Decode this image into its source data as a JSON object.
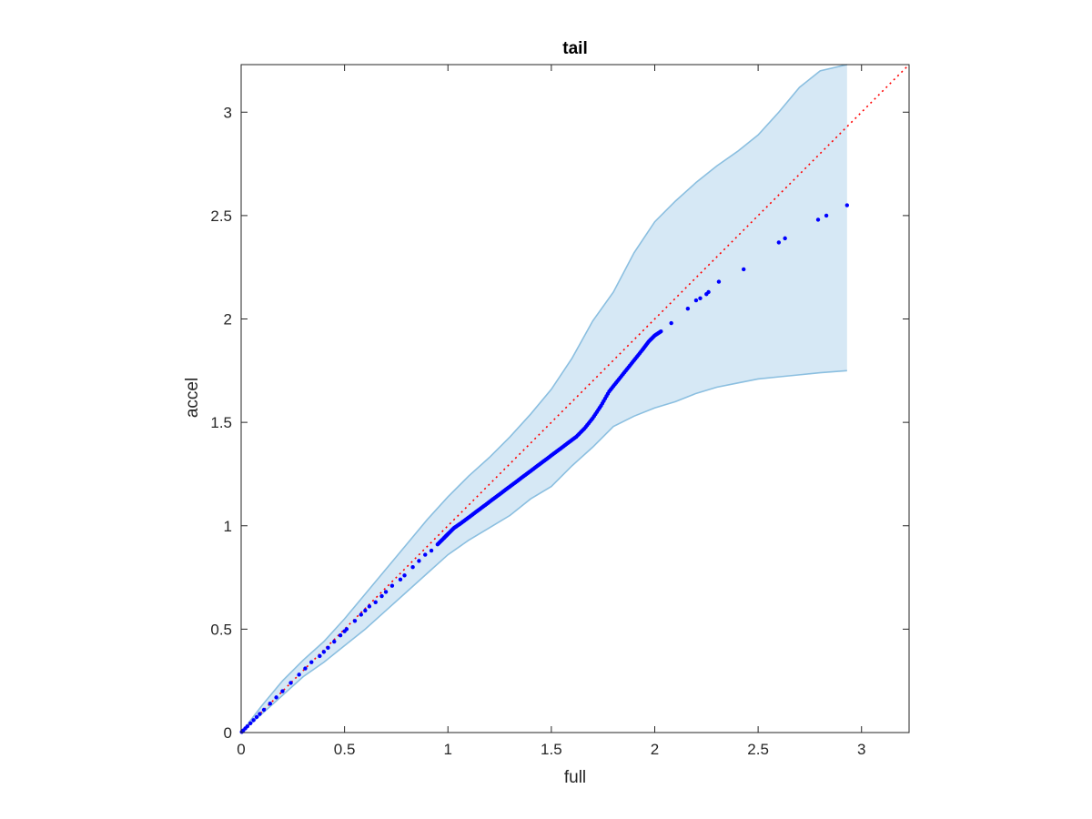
{
  "chart_data": {
    "type": "scatter",
    "title": "tail",
    "xlabel": "full",
    "ylabel": "accel",
    "xlim": [
      0,
      3.23
    ],
    "ylim": [
      0,
      3.23
    ],
    "xticks": [
      0,
      0.5,
      1,
      1.5,
      2,
      2.5,
      3
    ],
    "yticks": [
      0,
      0.5,
      1,
      1.5,
      2,
      2.5,
      3
    ],
    "xtick_labels": [
      "0",
      "0.5",
      "1",
      "1.5",
      "2",
      "2.5",
      "3"
    ],
    "ytick_labels": [
      "0",
      "0.5",
      "1",
      "1.5",
      "2",
      "2.5",
      "3"
    ],
    "grid": false,
    "reference_line": {
      "style": "dotted",
      "color": "#ff0000",
      "x": [
        0,
        3.23
      ],
      "y": [
        0,
        3.23
      ]
    },
    "confidence_band": {
      "fill_color": "#d6e8f5",
      "edge_color": "#8bbfe0",
      "x": [
        0,
        0.1,
        0.2,
        0.3,
        0.4,
        0.5,
        0.6,
        0.7,
        0.8,
        0.9,
        1.0,
        1.1,
        1.2,
        1.3,
        1.4,
        1.5,
        1.6,
        1.7,
        1.8,
        1.9,
        2.0,
        2.1,
        2.2,
        2.3,
        2.4,
        2.5,
        2.6,
        2.7,
        2.8,
        2.93
      ],
      "upper": [
        0,
        0.13,
        0.25,
        0.35,
        0.44,
        0.55,
        0.67,
        0.79,
        0.91,
        1.03,
        1.14,
        1.24,
        1.33,
        1.43,
        1.54,
        1.66,
        1.81,
        1.99,
        2.13,
        2.32,
        2.47,
        2.57,
        2.66,
        2.74,
        2.81,
        2.89,
        3.0,
        3.12,
        3.2,
        3.23
      ],
      "lower": [
        0,
        0.09,
        0.18,
        0.27,
        0.34,
        0.42,
        0.5,
        0.59,
        0.68,
        0.77,
        0.86,
        0.93,
        0.99,
        1.05,
        1.13,
        1.19,
        1.29,
        1.38,
        1.48,
        1.53,
        1.57,
        1.6,
        1.64,
        1.67,
        1.69,
        1.71,
        1.72,
        1.73,
        1.74,
        1.75
      ]
    },
    "series": [
      {
        "color": "#0000ff",
        "x": [
          0.003,
          0.01,
          0.02,
          0.03,
          0.045,
          0.06,
          0.075,
          0.09,
          0.11,
          0.14,
          0.17,
          0.2,
          0.24,
          0.28,
          0.31,
          0.34,
          0.38,
          0.4,
          0.42,
          0.45,
          0.48,
          0.5,
          0.51,
          0.55,
          0.58,
          0.6,
          0.62,
          0.65,
          0.68,
          0.7,
          0.73,
          0.77,
          0.79,
          0.83,
          0.86,
          0.89,
          0.92,
          0.95,
          0.98,
          1.0,
          1.03,
          1.06,
          1.1,
          1.14,
          1.18,
          1.22,
          1.26,
          1.3,
          1.34,
          1.38,
          1.42,
          1.46,
          1.5,
          1.54,
          1.58,
          1.62,
          1.66,
          1.7,
          1.74,
          1.78,
          1.82,
          1.86,
          1.9,
          1.94,
          1.97,
          2.0,
          2.03,
          2.08,
          2.16,
          2.2,
          2.22,
          2.25,
          2.26,
          2.31,
          2.43,
          2.6,
          2.63,
          2.79,
          2.83,
          2.93
        ],
        "y": [
          0.003,
          0.01,
          0.02,
          0.03,
          0.045,
          0.06,
          0.075,
          0.09,
          0.11,
          0.14,
          0.17,
          0.2,
          0.24,
          0.28,
          0.31,
          0.34,
          0.37,
          0.39,
          0.41,
          0.44,
          0.47,
          0.49,
          0.5,
          0.54,
          0.57,
          0.59,
          0.61,
          0.63,
          0.66,
          0.68,
          0.71,
          0.74,
          0.76,
          0.8,
          0.83,
          0.86,
          0.88,
          0.91,
          0.94,
          0.96,
          0.99,
          1.01,
          1.04,
          1.07,
          1.1,
          1.13,
          1.16,
          1.19,
          1.22,
          1.25,
          1.28,
          1.31,
          1.34,
          1.37,
          1.4,
          1.43,
          1.47,
          1.52,
          1.58,
          1.65,
          1.7,
          1.75,
          1.8,
          1.85,
          1.89,
          1.92,
          1.94,
          1.98,
          2.05,
          2.09,
          2.1,
          2.12,
          2.13,
          2.18,
          2.24,
          2.37,
          2.39,
          2.48,
          2.5,
          2.55
        ]
      }
    ]
  }
}
